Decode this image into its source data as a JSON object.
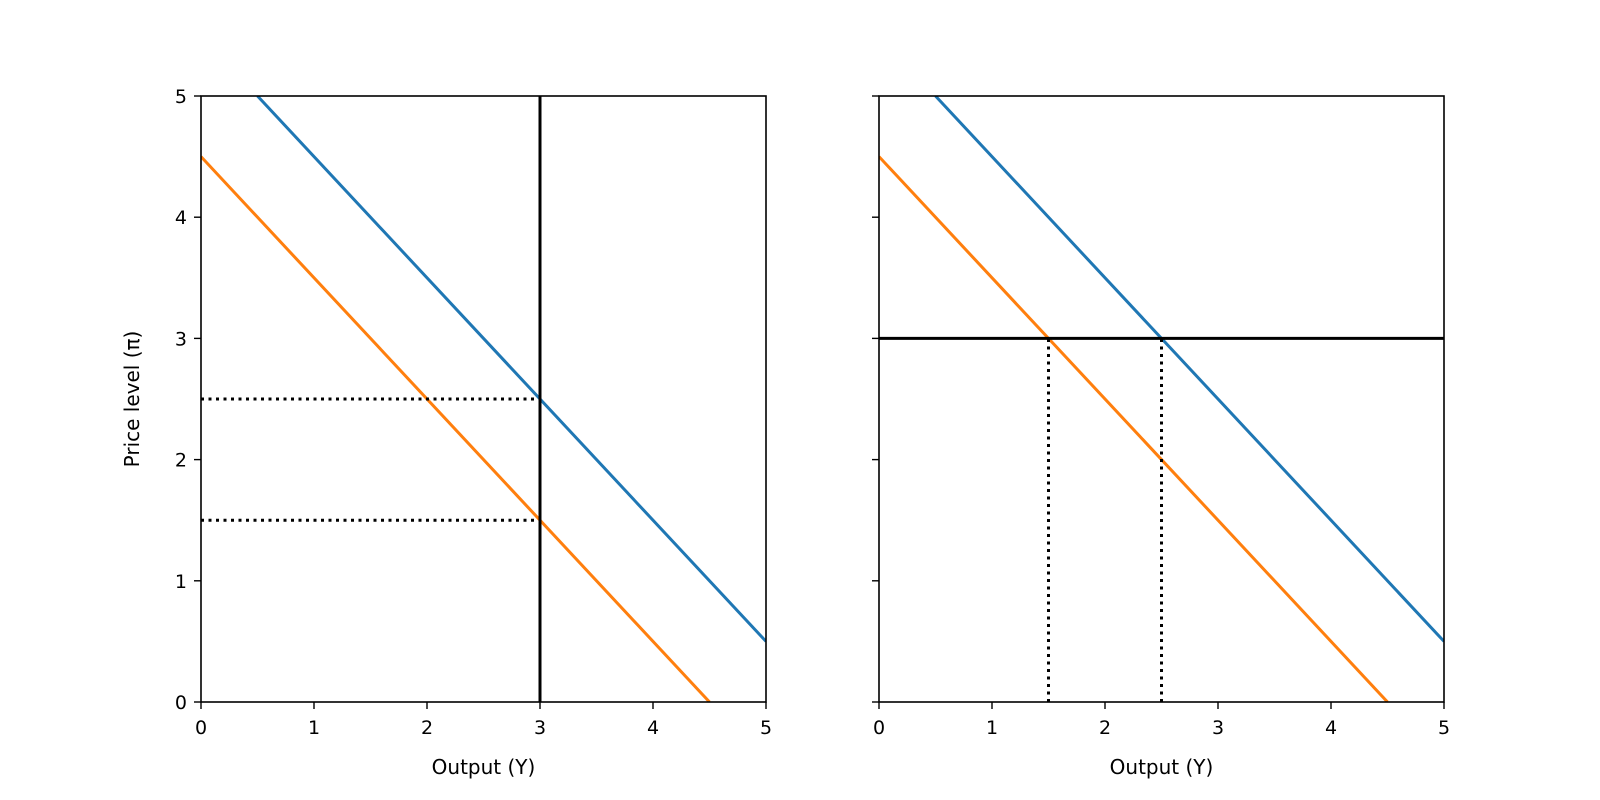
{
  "chart_data": [
    {
      "type": "line",
      "xlabel": "Output (Y)",
      "ylabel": "Price level (π)",
      "xlim": [
        0,
        5
      ],
      "ylim": [
        0,
        5
      ],
      "xticks": [
        "0",
        "1",
        "2",
        "3",
        "4",
        "5"
      ],
      "yticks": [
        "0",
        "1",
        "2",
        "3",
        "4",
        "5"
      ],
      "show_ytick_labels": true,
      "grid": false,
      "series": [
        {
          "color": "#1f77b4",
          "style": "solid",
          "x": [
            0.5,
            5
          ],
          "y": [
            5,
            0.5
          ]
        },
        {
          "color": "#ff7f0e",
          "style": "solid",
          "x": [
            0,
            4.5
          ],
          "y": [
            4.5,
            0
          ]
        },
        {
          "color": "#000000",
          "style": "solid",
          "x": [
            3,
            3
          ],
          "y": [
            0,
            5
          ]
        },
        {
          "color": "#000000",
          "style": "dotted",
          "x": [
            0,
            3
          ],
          "y": [
            2.5,
            2.5
          ]
        },
        {
          "color": "#000000",
          "style": "dotted",
          "x": [
            0,
            3
          ],
          "y": [
            1.5,
            1.5
          ]
        }
      ]
    },
    {
      "type": "line",
      "xlabel": "Output (Y)",
      "ylabel": "",
      "xlim": [
        0,
        5
      ],
      "ylim": [
        0,
        5
      ],
      "xticks": [
        "0",
        "1",
        "2",
        "3",
        "4",
        "5"
      ],
      "yticks": [
        "0",
        "1",
        "2",
        "3",
        "4",
        "5"
      ],
      "show_ytick_labels": false,
      "grid": false,
      "series": [
        {
          "color": "#1f77b4",
          "style": "solid",
          "x": [
            0.5,
            5
          ],
          "y": [
            5,
            0.5
          ]
        },
        {
          "color": "#ff7f0e",
          "style": "solid",
          "x": [
            0,
            4.5
          ],
          "y": [
            4.5,
            0
          ]
        },
        {
          "color": "#000000",
          "style": "solid",
          "x": [
            0,
            5
          ],
          "y": [
            3,
            3
          ]
        },
        {
          "color": "#000000",
          "style": "dotted",
          "x": [
            1.5,
            1.5
          ],
          "y": [
            0,
            3
          ]
        },
        {
          "color": "#000000",
          "style": "dotted",
          "x": [
            2.5,
            2.5
          ],
          "y": [
            0,
            3
          ]
        }
      ]
    }
  ]
}
